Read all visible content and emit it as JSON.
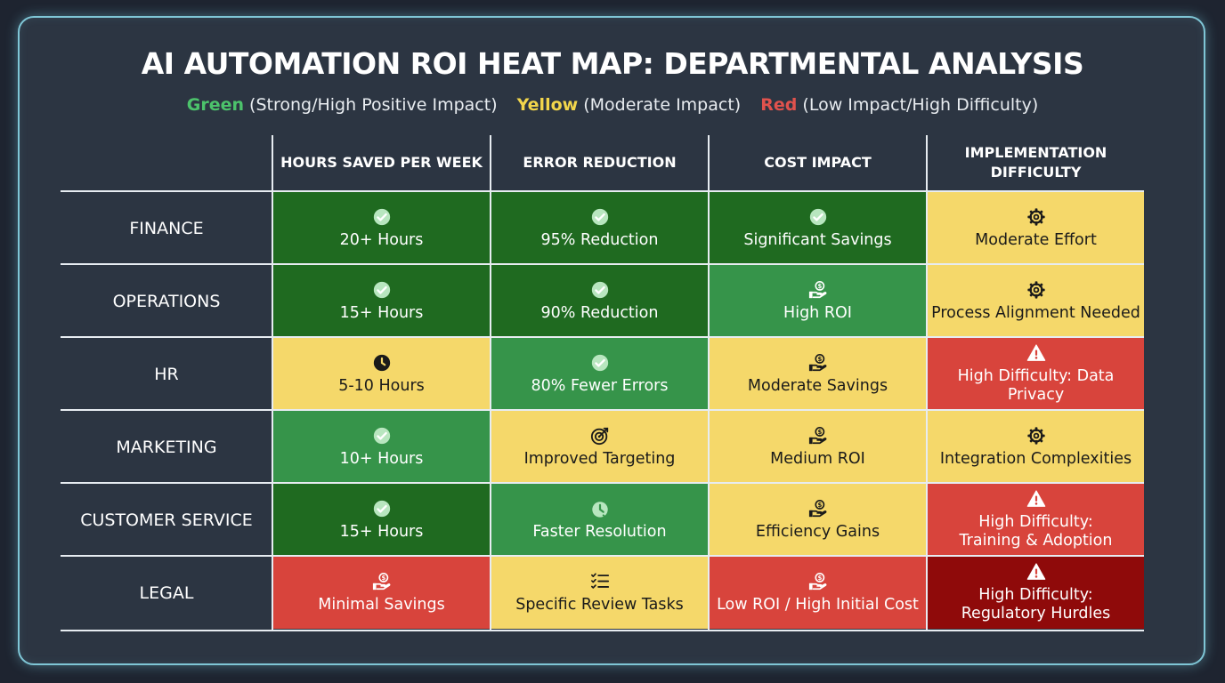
{
  "chart_data": {
    "type": "heatmap",
    "title": "AI AUTOMATION ROI HEAT MAP: DEPARTMENTAL ANALYSIS",
    "legend": [
      {
        "key": "Green",
        "desc": "(Strong/High Positive Impact)",
        "color": "#4cc36b"
      },
      {
        "key": "Yellow",
        "desc": "(Moderate Impact)",
        "color": "#f2d64b"
      },
      {
        "key": "Red",
        "desc": "(Low Impact/High Difficulty)",
        "color": "#e0524d"
      }
    ],
    "columns": [
      "HOURS SAVED PER WEEK",
      "ERROR REDUCTION",
      "COST IMPACT",
      "IMPLEMENTATION\nDIFFICULTY"
    ],
    "rows": [
      "FINANCE",
      "OPERATIONS",
      "HR",
      "MARKETING",
      "CUSTOMER SERVICE",
      "LEGAL"
    ],
    "palette": {
      "dark-green": "#1f6a20",
      "green": "#36944a",
      "yellow": "#f5d86a",
      "red": "#d8443c",
      "dark-red": "#8f0a0a"
    },
    "cells": [
      [
        {
          "text": "20+ Hours",
          "level": "dark-green",
          "icon": "check-circle-icon"
        },
        {
          "text": "95% Reduction",
          "level": "dark-green",
          "icon": "check-circle-icon"
        },
        {
          "text": "Significant Savings",
          "level": "dark-green",
          "icon": "check-circle-icon"
        },
        {
          "text": "Moderate Effort",
          "level": "yellow",
          "icon": "gear-icon"
        }
      ],
      [
        {
          "text": "15+ Hours",
          "level": "dark-green",
          "icon": "check-circle-icon"
        },
        {
          "text": "90% Reduction",
          "level": "dark-green",
          "icon": "check-circle-icon"
        },
        {
          "text": "High ROI",
          "level": "green",
          "icon": "money-hand-icon"
        },
        {
          "text": "Process Alignment Needed",
          "level": "yellow",
          "icon": "gear-icon"
        }
      ],
      [
        {
          "text": "5-10 Hours",
          "level": "yellow",
          "icon": "clock-icon"
        },
        {
          "text": "80% Fewer Errors",
          "level": "green",
          "icon": "check-circle-icon"
        },
        {
          "text": "Moderate Savings",
          "level": "yellow",
          "icon": "money-hand-icon"
        },
        {
          "text": "High Difficulty: Data Privacy",
          "level": "red",
          "icon": "warning-icon"
        }
      ],
      [
        {
          "text": "10+ Hours",
          "level": "green",
          "icon": "check-circle-icon"
        },
        {
          "text": "Improved Targeting",
          "level": "yellow",
          "icon": "target-icon"
        },
        {
          "text": "Medium ROI",
          "level": "yellow",
          "icon": "money-hand-icon"
        },
        {
          "text": "Integration Complexities",
          "level": "yellow",
          "icon": "gear-icon"
        }
      ],
      [
        {
          "text": "15+ Hours",
          "level": "dark-green",
          "icon": "check-circle-icon"
        },
        {
          "text": "Faster Resolution",
          "level": "green",
          "icon": "stopwatch-icon"
        },
        {
          "text": "Efficiency Gains",
          "level": "yellow",
          "icon": "money-hand-icon"
        },
        {
          "text": "High Difficulty:\nTraining & Adoption",
          "level": "red",
          "icon": "warning-icon"
        }
      ],
      [
        {
          "text": "Minimal Savings",
          "level": "red",
          "icon": "money-hand-icon"
        },
        {
          "text": "Specific Review Tasks",
          "level": "yellow",
          "icon": "checklist-icon"
        },
        {
          "text": "Low ROI / High Initial Cost",
          "level": "red",
          "icon": "money-hand-icon"
        },
        {
          "text": "High Difficulty:\nRegulatory Hurdles",
          "level": "dark-red",
          "icon": "warning-icon"
        }
      ]
    ]
  }
}
